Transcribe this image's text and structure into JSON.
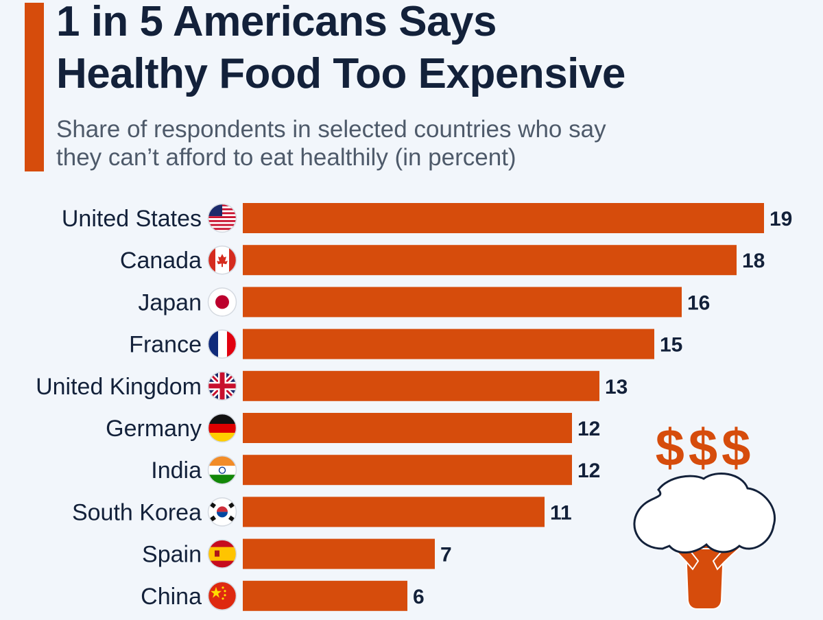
{
  "title_line1": "1 in 5 Americans Says",
  "title_line2": "Healthy Food Too Expensive",
  "subtitle_line1": "Share of respondents in selected countries who say",
  "subtitle_line2": "they can’t afford to eat healthily (in percent)",
  "colors": {
    "accent": "#d64c0c",
    "title": "#13213a",
    "subtitle": "#4e5a6a",
    "background": "#f2f6fb"
  },
  "illustration": {
    "name": "broccoli-dollar-icon",
    "text": "$$$"
  },
  "chart_data": {
    "type": "bar",
    "orientation": "horizontal",
    "title": "1 in 5 Americans Says Healthy Food Too Expensive",
    "subtitle": "Share of respondents in selected countries who say they can’t afford to eat healthily (in percent)",
    "categories": [
      "United States",
      "Canada",
      "Japan",
      "France",
      "United Kingdom",
      "Germany",
      "India",
      "South Korea",
      "Spain",
      "China"
    ],
    "flags": [
      "us-flag-icon",
      "canada-flag-icon",
      "japan-flag-icon",
      "france-flag-icon",
      "uk-flag-icon",
      "germany-flag-icon",
      "india-flag-icon",
      "south-korea-flag-icon",
      "spain-flag-icon",
      "china-flag-icon"
    ],
    "values": [
      19,
      18,
      16,
      15,
      13,
      12,
      12,
      11,
      7,
      6
    ],
    "unit": "percent",
    "xlim": [
      0,
      19
    ],
    "grid": false,
    "legend": "none"
  }
}
